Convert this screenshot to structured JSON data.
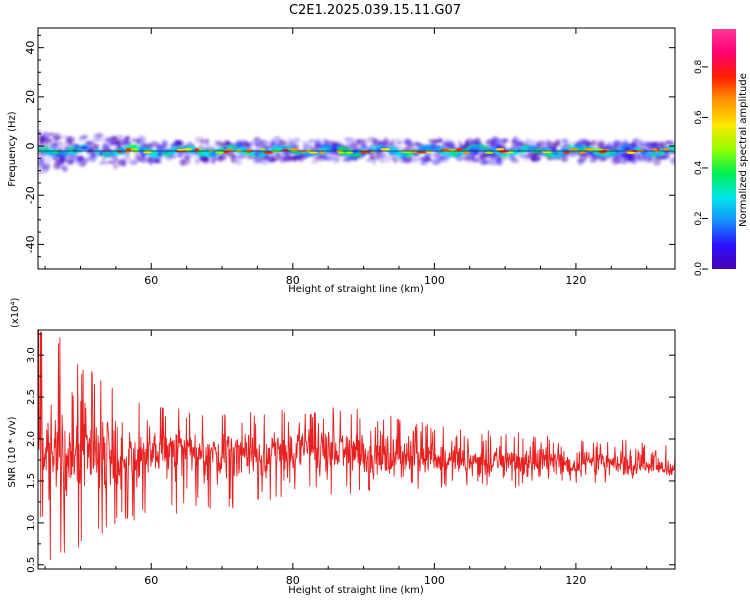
{
  "title": "C2E1.2025.039.15.11.G07",
  "colors": {
    "colormap": [
      "#4b00b0",
      "#2a10ff",
      "#1690ff",
      "#00e6e6",
      "#00f050",
      "#96ff00",
      "#ffe600",
      "#ff9600",
      "#ff2000",
      "#ff0070",
      "#ff3898"
    ],
    "snr_line": "#e82020",
    "axes": "#000000"
  },
  "chart_data": [
    {
      "type": "heatmap",
      "xlabel": "Height of straight line (km)",
      "ylabel": "Frequency (Hz)",
      "xlim": [
        44,
        134
      ],
      "ylim": [
        -50,
        48
      ],
      "xticks": [
        60,
        80,
        100,
        120
      ],
      "yticks": [
        -40,
        -20,
        0,
        20,
        40
      ],
      "grid": false,
      "ridge_frequency_hz": -2,
      "colorbar": {
        "label": "Normalized spectral amplitude",
        "range": [
          0,
          0.95
        ],
        "ticks": [
          0,
          0.2,
          0.4,
          0.6,
          0.8
        ],
        "tick_labels": [
          "0.0",
          "0.2",
          "0.4",
          "0.6",
          "0.8"
        ]
      }
    },
    {
      "type": "line",
      "xlabel": "Height of straight line (km)",
      "ylabel": "SNR (10 * v/v)",
      "y_multiplier_label": "(x10⁴)",
      "xlim": [
        44,
        134
      ],
      "ylim": [
        0.45,
        3.3
      ],
      "xticks": [
        60,
        80,
        100,
        120
      ],
      "yticks": [
        0.5,
        1.0,
        1.5,
        2.0,
        2.5,
        3.0
      ],
      "ytick_labels": [
        "0.5",
        "1.0",
        "1.5",
        "2.0",
        "2.5",
        "3.0"
      ],
      "grid": false,
      "series": [
        {
          "x": [
            44,
            46,
            48,
            50,
            52,
            54,
            56,
            58,
            60,
            62,
            64,
            66,
            68,
            70,
            72,
            74,
            76,
            78,
            80,
            82,
            84,
            86,
            88,
            90,
            92,
            94,
            96,
            98,
            100,
            102,
            104,
            106,
            108,
            110,
            112,
            114,
            116,
            118,
            120,
            122,
            124,
            126,
            128,
            130,
            132,
            134
          ],
          "y": [
            1.7,
            1.9,
            1.6,
            2.1,
            1.8,
            1.9,
            1.75,
            1.85,
            1.8,
            1.9,
            1.85,
            1.8,
            1.85,
            1.8,
            1.9,
            1.85,
            1.8,
            1.85,
            1.8,
            1.9,
            1.85,
            1.8,
            1.9,
            1.85,
            1.8,
            1.75,
            1.8,
            1.75,
            1.8,
            1.75,
            1.7,
            1.75,
            1.7,
            1.75,
            1.7,
            1.7,
            1.75,
            1.7,
            1.7,
            1.75,
            1.7,
            1.7,
            1.65,
            1.7,
            1.65,
            1.65
          ],
          "min_envelope": [
            0.45,
            0.5,
            0.5,
            0.7,
            0.8,
            0.9,
            1.0,
            1.0,
            1.05,
            1.1,
            1.1,
            1.15,
            1.15,
            1.2,
            1.15,
            1.2,
            1.25,
            1.2,
            1.25,
            1.3,
            1.3,
            1.3,
            1.3,
            1.3,
            1.35,
            1.3,
            1.35,
            1.35,
            1.4,
            1.35,
            1.4,
            1.4,
            1.4,
            1.45,
            1.4,
            1.45,
            1.45,
            1.45,
            1.45,
            1.45,
            1.45,
            1.5,
            1.5,
            1.5,
            1.5,
            1.5
          ],
          "max_envelope": [
            3.3,
            3.3,
            3.2,
            2.9,
            2.8,
            2.7,
            2.6,
            2.5,
            2.45,
            2.4,
            2.45,
            2.3,
            2.35,
            2.3,
            2.3,
            2.35,
            2.3,
            2.4,
            2.3,
            2.35,
            2.3,
            2.4,
            2.35,
            2.4,
            2.35,
            2.3,
            2.25,
            2.2,
            2.2,
            2.2,
            2.15,
            2.1,
            2.15,
            2.1,
            2.1,
            2.05,
            2.05,
            2.05,
            2.05,
            2.0,
            2.0,
            2.0,
            2.0,
            2.05,
            1.95,
            1.95
          ]
        }
      ]
    }
  ]
}
